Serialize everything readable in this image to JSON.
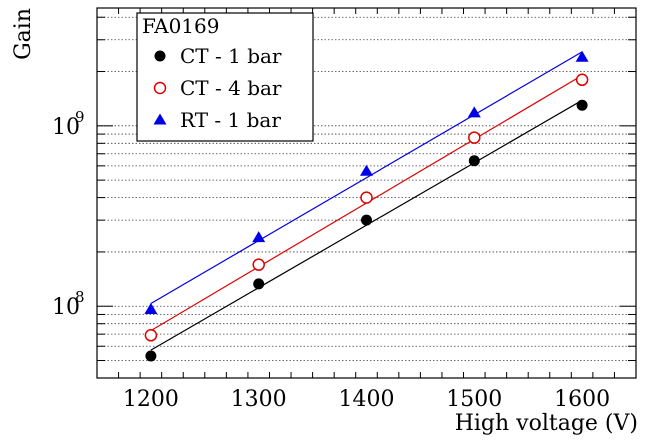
{
  "chart_data": {
    "type": "scatter",
    "title": "",
    "xlabel": "High voltage (V)",
    "ylabel": "Gain",
    "yscale": "log",
    "xlim": [
      1150,
      1650
    ],
    "ylim": [
      40000000,
      4500000000
    ],
    "grid": "horizontal dotted",
    "x_ticks": [
      1200,
      1300,
      1400,
      1500,
      1600
    ],
    "x_tick_labels": [
      "1200",
      "1300",
      "1400",
      "1500",
      "1600"
    ],
    "y_major_ticks": [
      {
        "value": 100000000,
        "base": "10",
        "exp": "8"
      },
      {
        "value": 1000000000,
        "base": "10",
        "exp": "9"
      }
    ],
    "legend": {
      "title": "FA0169",
      "placement": "top-left"
    },
    "series": [
      {
        "name": "CT - 1 bar",
        "marker": "filled-circle",
        "color": "#000000",
        "fit_line": true,
        "x": [
          1200,
          1300,
          1400,
          1500,
          1600
        ],
        "y": [
          53000000,
          133000000,
          300000000,
          640000000,
          1300000000
        ]
      },
      {
        "name": "CT - 4 bar",
        "marker": "open-circle",
        "color": "#e00000",
        "fit_line": true,
        "x": [
          1200,
          1300,
          1400,
          1500,
          1600
        ],
        "y": [
          69000000,
          170000000,
          400000000,
          860000000,
          1800000000
        ]
      },
      {
        "name": "RT - 1 bar",
        "marker": "filled-triangle",
        "color": "#0000e6",
        "fit_line": true,
        "x": [
          1200,
          1300,
          1400,
          1500,
          1600
        ],
        "y": [
          96000000,
          240000000,
          560000000,
          1180000000,
          2400000000
        ]
      }
    ]
  }
}
